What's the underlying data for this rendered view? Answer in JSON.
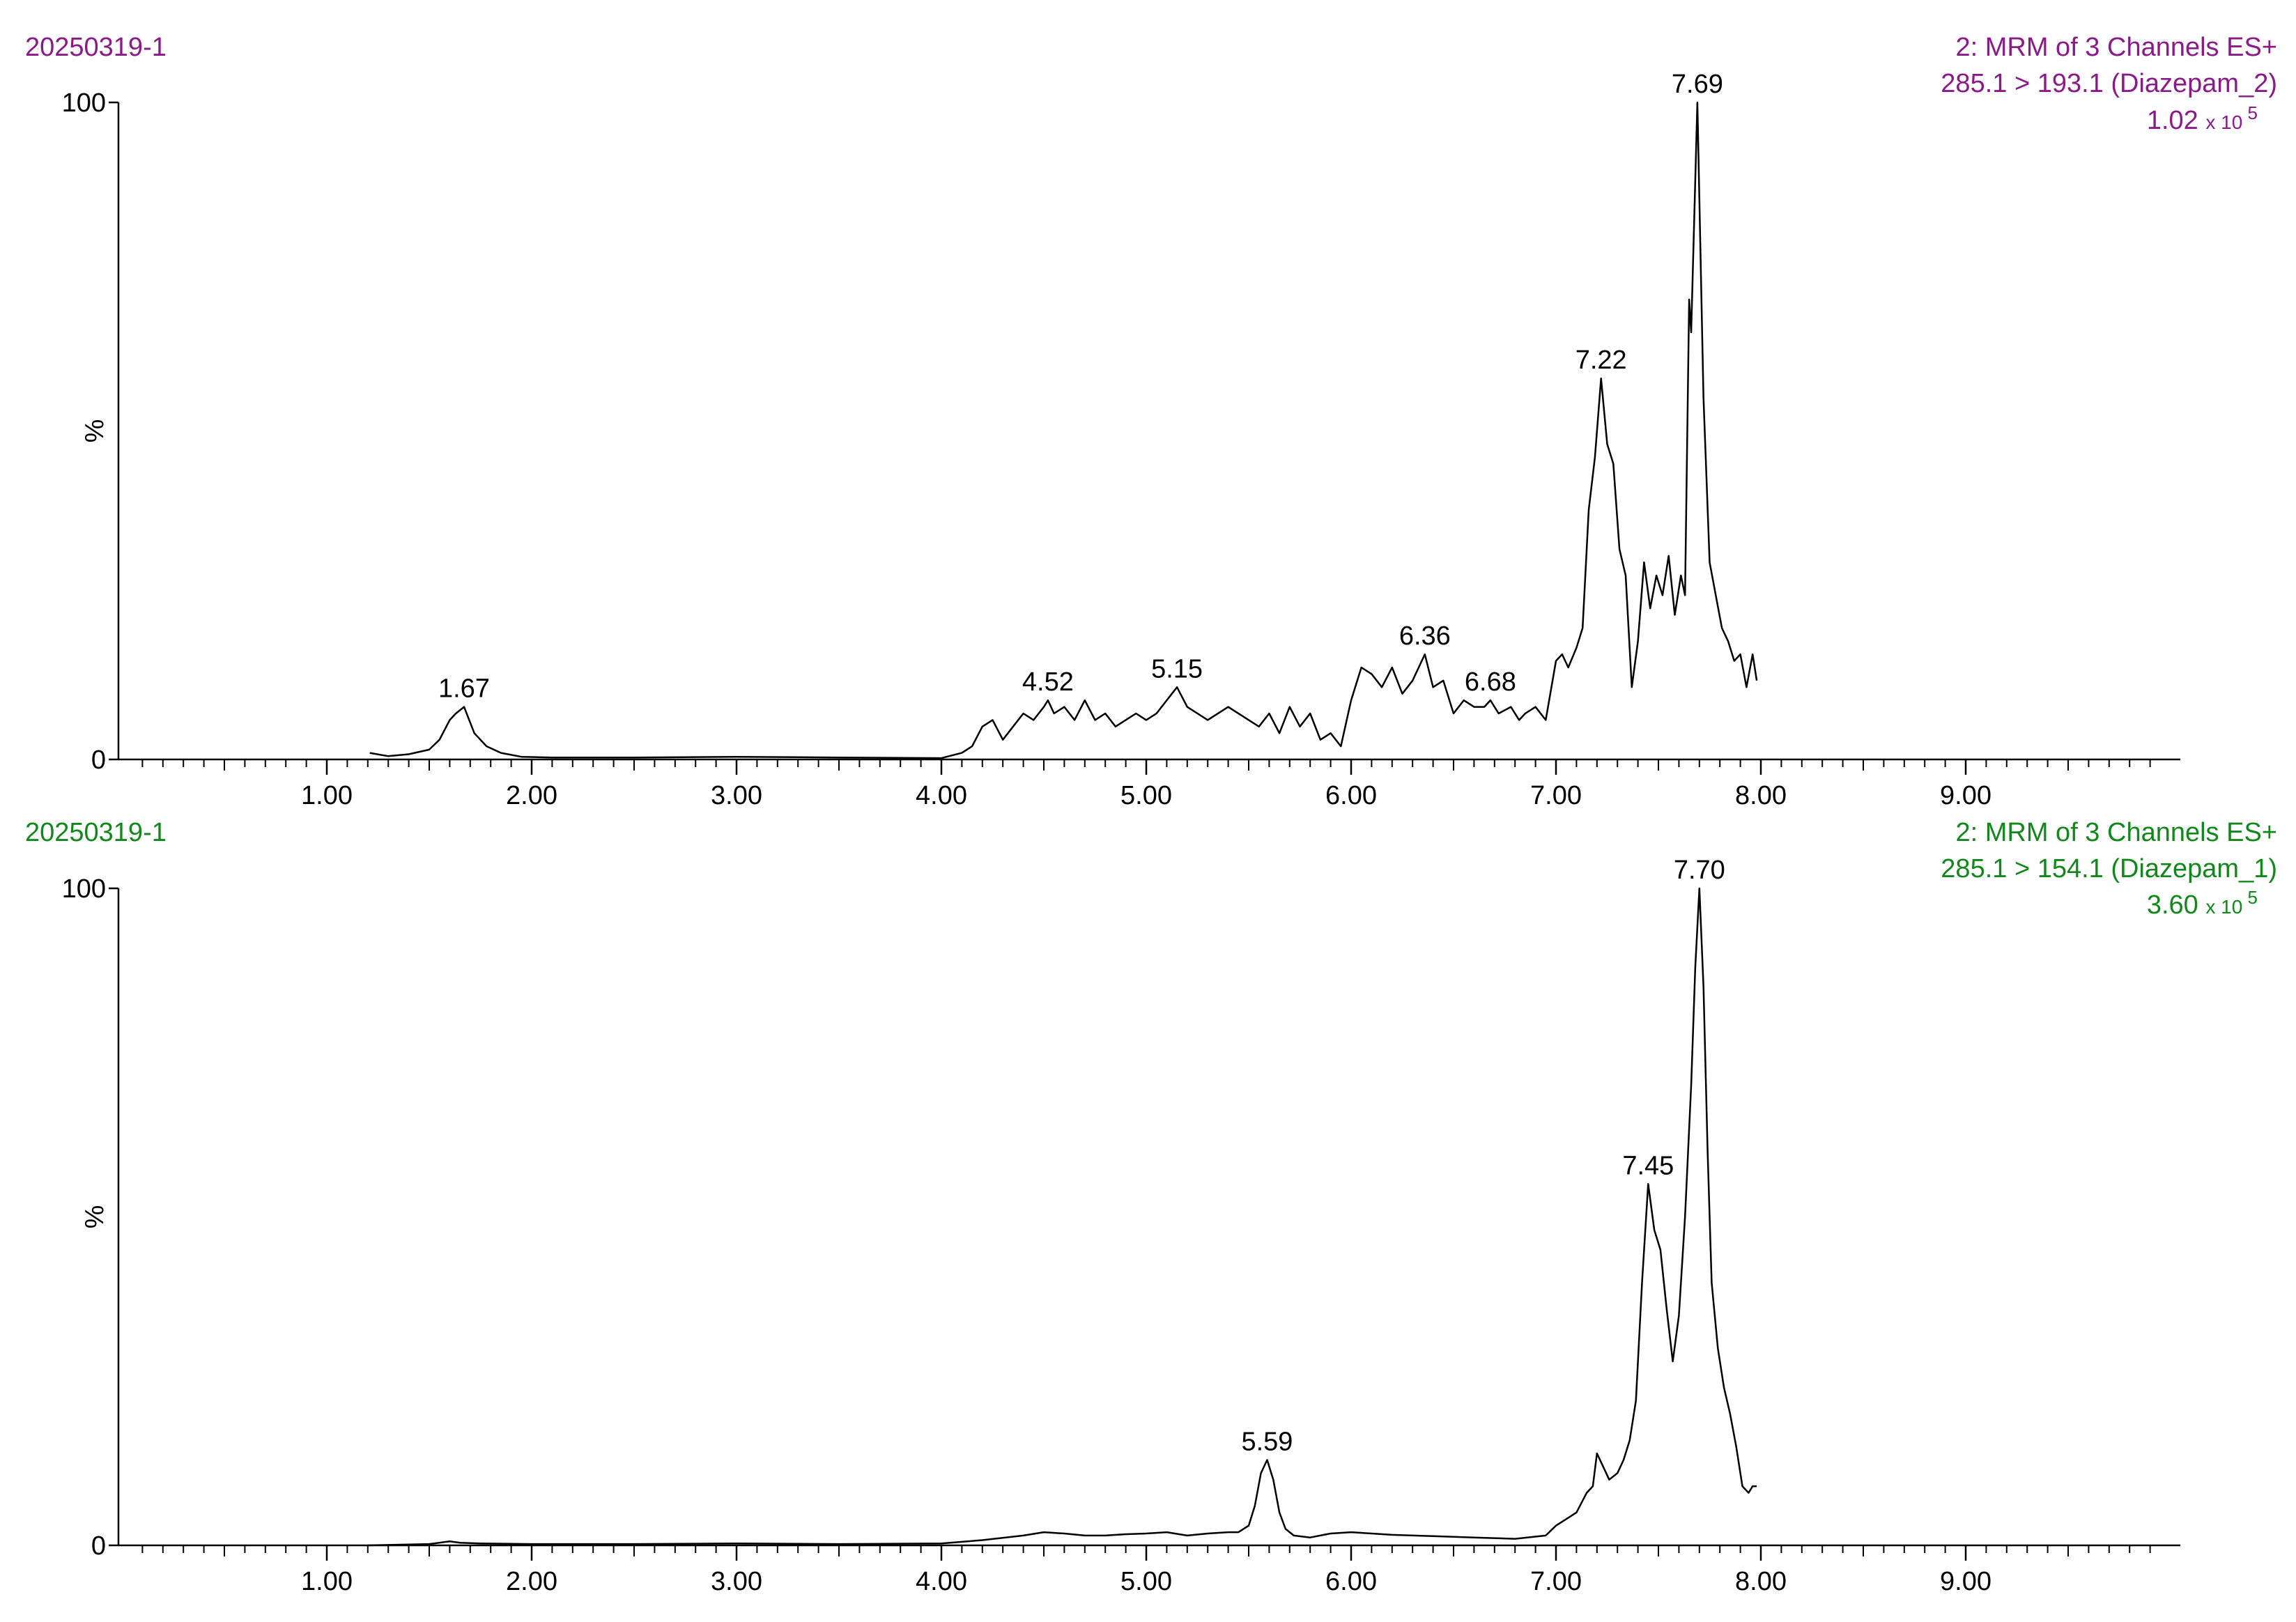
{
  "colors": {
    "panel1_header": "#8b1a89",
    "panel2_header": "#12871c",
    "trace": "#000000",
    "axis": "#000000",
    "background": "#ffffff"
  },
  "chart_data": [
    {
      "type": "line",
      "sample": "20250319-1",
      "header_line1": "2: MRM of 3 Channels ES+",
      "header_line2": "285.1 > 193.1 (Diazepam_2)",
      "intensity_mantissa": "1.02",
      "intensity_times": "x 10",
      "intensity_exponent": "5",
      "ylabel": "%",
      "xlabel": "",
      "xlim": [
        0.0,
        10.0
      ],
      "ylim": [
        0,
        100
      ],
      "x_tick_labels": [
        "1.00",
        "2.00",
        "3.00",
        "4.00",
        "5.00",
        "6.00",
        "7.00",
        "8.00",
        "9.00"
      ],
      "x_ticks": [
        1,
        2,
        3,
        4,
        5,
        6,
        7,
        8,
        9
      ],
      "y_tick_labels": [
        "0",
        "100"
      ],
      "y_ticks": [
        0,
        100
      ],
      "peak_labels": [
        {
          "text": "1.67",
          "x": 1.67,
          "y": 8
        },
        {
          "text": "4.52",
          "x": 4.52,
          "y": 9
        },
        {
          "text": "5.15",
          "x": 5.15,
          "y": 11
        },
        {
          "text": "6.36",
          "x": 6.36,
          "y": 16
        },
        {
          "text": "6.68",
          "x": 6.68,
          "y": 9
        },
        {
          "text": "7.22",
          "x": 7.22,
          "y": 58
        },
        {
          "text": "7.69",
          "x": 7.69,
          "y": 100
        }
      ],
      "series": [
        {
          "x": [
            1.21,
            1.3,
            1.4,
            1.5,
            1.55,
            1.6,
            1.63,
            1.67,
            1.72,
            1.78,
            1.85,
            1.95,
            2.1,
            2.5,
            3.0,
            3.5,
            4.0,
            4.1,
            4.15,
            4.2,
            4.25,
            4.3,
            4.35,
            4.4,
            4.45,
            4.5,
            4.52,
            4.55,
            4.6,
            4.65,
            4.7,
            4.75,
            4.8,
            4.85,
            4.9,
            4.95,
            5.0,
            5.05,
            5.1,
            5.15,
            5.2,
            5.25,
            5.3,
            5.4,
            5.5,
            5.55,
            5.6,
            5.65,
            5.7,
            5.75,
            5.8,
            5.85,
            5.9,
            5.95,
            6.0,
            6.05,
            6.1,
            6.15,
            6.2,
            6.25,
            6.3,
            6.36,
            6.4,
            6.45,
            6.5,
            6.55,
            6.6,
            6.65,
            6.68,
            6.72,
            6.78,
            6.82,
            6.85,
            6.9,
            6.95,
            7.0,
            7.03,
            7.06,
            7.1,
            7.13,
            7.16,
            7.19,
            7.22,
            7.25,
            7.28,
            7.31,
            7.34,
            7.37,
            7.4,
            7.43,
            7.46,
            7.49,
            7.52,
            7.55,
            7.58,
            7.61,
            7.63,
            7.65,
            7.66,
            7.69,
            7.72,
            7.75,
            7.78,
            7.81,
            7.84,
            7.87,
            7.9,
            7.93,
            7.96,
            7.98
          ],
          "y": [
            1,
            0.5,
            0.8,
            1.5,
            3,
            6,
            7,
            8,
            4,
            2,
            1,
            0.4,
            0.3,
            0.3,
            0.4,
            0.3,
            0.2,
            1,
            2,
            5,
            6,
            3,
            5,
            7,
            6,
            8,
            9,
            7,
            8,
            6,
            9,
            6,
            7,
            5,
            6,
            7,
            6,
            7,
            9,
            11,
            8,
            7,
            6,
            8,
            6,
            5,
            7,
            4,
            8,
            5,
            7,
            3,
            4,
            2,
            9,
            14,
            13,
            11,
            14,
            10,
            12,
            16,
            11,
            12,
            7,
            9,
            8,
            8,
            9,
            7,
            8,
            6,
            7,
            8,
            6,
            15,
            16,
            14,
            17,
            20,
            38,
            46,
            58,
            48,
            45,
            32,
            28,
            11,
            18,
            30,
            23,
            28,
            25,
            31,
            22,
            28,
            25,
            70,
            65,
            100,
            55,
            30,
            25,
            20,
            18,
            15,
            16,
            11,
            16,
            12
          ]
        }
      ]
    },
    {
      "type": "line",
      "sample": "20250319-1",
      "header_line1": "2: MRM of 3 Channels ES+",
      "header_line2": "285.1 > 154.1 (Diazepam_1)",
      "intensity_mantissa": "3.60",
      "intensity_times": "x 10",
      "intensity_exponent": "5",
      "ylabel": "%",
      "xlabel": "",
      "xlim": [
        0.0,
        10.0
      ],
      "ylim": [
        0,
        100
      ],
      "x_tick_labels": [
        "1.00",
        "2.00",
        "3.00",
        "4.00",
        "5.00",
        "6.00",
        "7.00",
        "8.00",
        "9.00"
      ],
      "x_ticks": [
        1,
        2,
        3,
        4,
        5,
        6,
        7,
        8,
        9
      ],
      "y_tick_labels": [
        "0",
        "100"
      ],
      "y_ticks": [
        0,
        100
      ],
      "peak_labels": [
        {
          "text": "5.59",
          "x": 5.59,
          "y": 13
        },
        {
          "text": "7.45",
          "x": 7.45,
          "y": 55
        },
        {
          "text": "7.70",
          "x": 7.7,
          "y": 100
        }
      ],
      "series": [
        {
          "x": [
            1.2,
            1.5,
            1.6,
            1.65,
            1.75,
            2.0,
            2.5,
            3.0,
            3.5,
            4.0,
            4.2,
            4.4,
            4.5,
            4.6,
            4.7,
            4.8,
            4.9,
            5.0,
            5.1,
            5.2,
            5.3,
            5.4,
            5.45,
            5.5,
            5.53,
            5.56,
            5.59,
            5.62,
            5.65,
            5.68,
            5.72,
            5.8,
            5.9,
            6.0,
            6.1,
            6.2,
            6.4,
            6.6,
            6.8,
            6.95,
            7.0,
            7.05,
            7.1,
            7.15,
            7.18,
            7.2,
            7.23,
            7.26,
            7.3,
            7.33,
            7.36,
            7.39,
            7.42,
            7.45,
            7.48,
            7.51,
            7.54,
            7.57,
            7.6,
            7.63,
            7.66,
            7.68,
            7.7,
            7.72,
            7.74,
            7.76,
            7.79,
            7.82,
            7.85,
            7.88,
            7.91,
            7.94,
            7.96,
            7.98
          ],
          "y": [
            0,
            0.2,
            0.6,
            0.4,
            0.3,
            0.2,
            0.2,
            0.3,
            0.2,
            0.3,
            0.8,
            1.5,
            2,
            1.8,
            1.5,
            1.5,
            1.7,
            1.8,
            2,
            1.5,
            1.8,
            2,
            2,
            3,
            6,
            11,
            13,
            10,
            5,
            2.5,
            1.5,
            1.2,
            1.8,
            2,
            1.8,
            1.6,
            1.4,
            1.2,
            1,
            1.5,
            3,
            4,
            5,
            8,
            9,
            14,
            12,
            10,
            11,
            13,
            16,
            22,
            40,
            55,
            48,
            45,
            36,
            28,
            35,
            50,
            70,
            88,
            100,
            85,
            60,
            40,
            30,
            24,
            20,
            15,
            9,
            8,
            9,
            9
          ]
        }
      ]
    }
  ]
}
